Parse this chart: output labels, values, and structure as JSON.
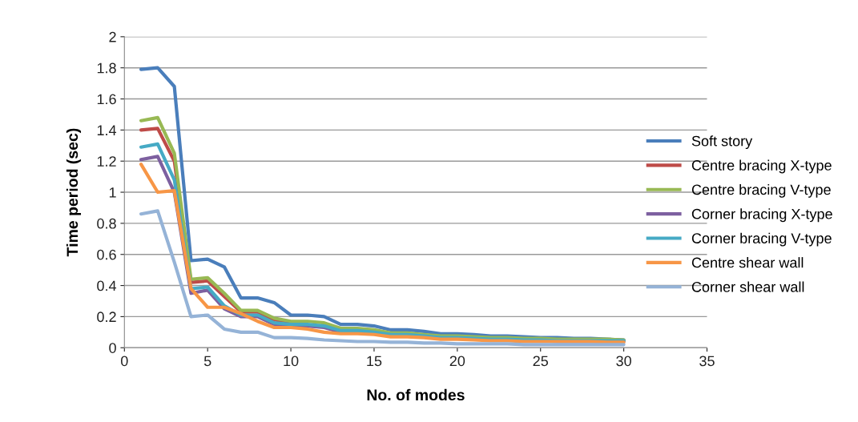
{
  "chart_data": {
    "type": "line",
    "xlabel": "No. of modes",
    "ylabel": "Time period (sec)",
    "x": [
      1,
      2,
      3,
      4,
      5,
      6,
      7,
      8,
      9,
      10,
      11,
      12,
      13,
      14,
      15,
      16,
      17,
      18,
      19,
      20,
      21,
      22,
      23,
      24,
      25,
      26,
      27,
      28,
      29,
      30
    ],
    "xlim": [
      0,
      35
    ],
    "xticks": [
      0,
      5,
      10,
      15,
      20,
      25,
      30,
      35
    ],
    "ylim": [
      0,
      2
    ],
    "yticks": [
      0,
      0.2,
      0.4,
      0.6,
      0.8,
      1,
      1.2,
      1.4,
      1.6,
      1.8,
      2
    ],
    "grid": "y",
    "legend": "right",
    "marker": "none",
    "line_style": "solid",
    "series": [
      {
        "name": "Soft story",
        "color": "#4a7ebb",
        "values": [
          1.79,
          1.8,
          1.68,
          0.56,
          0.57,
          0.52,
          0.32,
          0.32,
          0.29,
          0.21,
          0.21,
          0.2,
          0.15,
          0.15,
          0.14,
          0.115,
          0.115,
          0.105,
          0.09,
          0.09,
          0.085,
          0.075,
          0.075,
          0.07,
          0.065,
          0.065,
          0.06,
          0.06,
          0.055,
          0.05
        ]
      },
      {
        "name": "Centre bracing X-type",
        "color": "#be4b48",
        "values": [
          1.4,
          1.41,
          1.2,
          0.42,
          0.43,
          0.33,
          0.23,
          0.23,
          0.18,
          0.16,
          null,
          null,
          null,
          null,
          null,
          null,
          null,
          null,
          null,
          null,
          null,
          null,
          null,
          null,
          null,
          null,
          null,
          null,
          null,
          null
        ]
      },
      {
        "name": "Centre bracing V-type",
        "color": "#98b954",
        "values": [
          1.46,
          1.48,
          1.25,
          0.44,
          0.45,
          0.35,
          0.24,
          0.24,
          0.19,
          0.17,
          0.17,
          0.16,
          0.125,
          0.125,
          0.115,
          0.095,
          0.095,
          0.085,
          0.075,
          0.075,
          0.07,
          0.065,
          0.065,
          0.06,
          0.06,
          0.055,
          0.055,
          0.055,
          0.055,
          0.05
        ]
      },
      {
        "name": "Corner bracing X-type",
        "color": "#7d60a0",
        "values": [
          1.21,
          1.23,
          1.0,
          0.35,
          0.37,
          0.25,
          0.2,
          0.2,
          0.15,
          0.14,
          0.14,
          0.13,
          0.1,
          0.1,
          0.09,
          0.08,
          0.08,
          0.07,
          0.06,
          0.06,
          0.055,
          0.05,
          0.05,
          0.045,
          0.045,
          0.04,
          0.04,
          0.04,
          0.04,
          0.04
        ]
      },
      {
        "name": "Corner bracing V-type",
        "color": "#46aac5",
        "values": [
          1.29,
          1.31,
          1.08,
          0.38,
          0.39,
          0.27,
          0.21,
          0.21,
          0.16,
          0.15,
          0.15,
          0.14,
          0.11,
          0.11,
          0.1,
          0.085,
          0.085,
          0.075,
          0.065,
          0.065,
          0.06,
          0.055,
          0.055,
          0.05,
          0.05,
          0.045,
          0.045,
          0.045,
          0.045,
          0.045
        ]
      },
      {
        "name": "Centre shear wall",
        "color": "#f79646",
        "values": [
          1.18,
          1.0,
          1.01,
          0.38,
          0.26,
          0.26,
          0.22,
          0.17,
          0.13,
          0.13,
          0.12,
          0.1,
          0.09,
          0.09,
          0.085,
          0.07,
          0.07,
          0.065,
          0.055,
          0.055,
          0.05,
          0.045,
          0.045,
          0.04,
          0.04,
          0.04,
          0.04,
          0.04,
          0.035,
          0.035
        ]
      },
      {
        "name": "Corner shear wall",
        "color": "#95b3d7",
        "values": [
          0.86,
          0.88,
          0.55,
          0.2,
          0.21,
          0.12,
          0.1,
          0.1,
          0.065,
          0.065,
          0.06,
          0.05,
          0.045,
          0.04,
          0.04,
          0.035,
          0.035,
          0.03,
          0.03,
          0.025,
          0.025,
          0.025,
          0.025,
          0.02,
          0.02,
          0.02,
          0.02,
          0.02,
          0.02,
          0.02
        ]
      }
    ]
  }
}
